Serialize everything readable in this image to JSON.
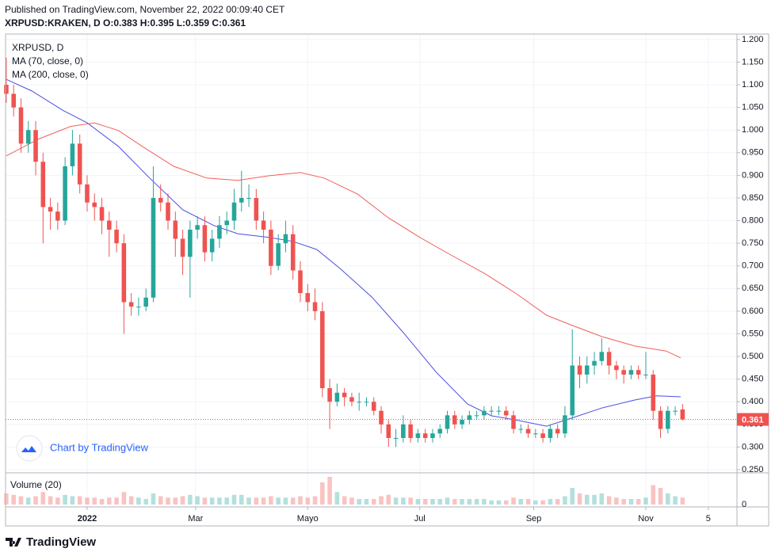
{
  "header": {
    "published": "Published on TradingView.com, November 22, 2022 00:09:40 CET",
    "symbol_line": "XRPUSD:KRAKEN, D  O:0.383 H:0.395 L:0.359 C:0.361"
  },
  "watermark": "Chart by TradingView",
  "footer": "TradingView",
  "chart_data": {
    "type": "candlestick",
    "title": "XRPUSD, D",
    "up_color": "#26a69a",
    "down_color": "#ef5350",
    "x": [
      -44,
      -40,
      -36,
      -32,
      -28,
      -24,
      -20,
      -16,
      -12,
      -8,
      -4,
      0,
      4,
      8,
      12,
      16,
      20,
      24,
      28,
      32,
      36,
      40,
      44,
      48,
      52,
      56,
      60,
      64,
      68,
      72,
      76,
      80,
      84,
      88,
      92,
      96,
      100,
      104,
      108,
      112,
      116,
      120,
      124,
      128,
      132,
      136,
      140,
      144,
      148,
      152,
      156,
      160,
      164,
      168,
      172,
      176,
      180,
      184,
      188,
      192,
      196,
      200,
      204,
      208,
      212,
      216,
      220,
      224,
      228,
      232,
      236,
      240,
      244,
      248,
      252,
      256,
      260,
      264,
      268,
      272,
      276,
      280,
      284,
      288,
      292,
      296,
      300,
      304,
      308,
      312,
      316,
      320,
      324
    ],
    "open": [
      1.1,
      1.08,
      1.05,
      0.97,
      1.0,
      0.93,
      0.83,
      0.82,
      0.8,
      0.92,
      0.97,
      0.88,
      0.84,
      0.83,
      0.8,
      0.78,
      0.75,
      0.62,
      0.61,
      0.61,
      0.63,
      0.85,
      0.84,
      0.8,
      0.76,
      0.72,
      0.78,
      0.79,
      0.73,
      0.76,
      0.79,
      0.8,
      0.84,
      0.85,
      0.85,
      0.8,
      0.78,
      0.7,
      0.75,
      0.77,
      0.69,
      0.64,
      0.62,
      0.6,
      0.43,
      0.4,
      0.42,
      0.41,
      0.4,
      0.4,
      0.4,
      0.38,
      0.35,
      0.32,
      0.32,
      0.35,
      0.32,
      0.33,
      0.32,
      0.33,
      0.34,
      0.37,
      0.35,
      0.36,
      0.37,
      0.37,
      0.38,
      0.38,
      0.38,
      0.37,
      0.34,
      0.34,
      0.33,
      0.33,
      0.32,
      0.34,
      0.33,
      0.37,
      0.48,
      0.46,
      0.48,
      0.49,
      0.51,
      0.48,
      0.47,
      0.46,
      0.47,
      0.46,
      0.46,
      0.38,
      0.34,
      0.38,
      0.383
    ],
    "high": [
      1.16,
      1.1,
      1.07,
      1.02,
      1.02,
      0.95,
      0.85,
      0.84,
      0.94,
      1.0,
      0.99,
      0.9,
      0.86,
      0.85,
      0.82,
      0.8,
      0.77,
      0.64,
      0.63,
      0.65,
      0.92,
      0.88,
      0.86,
      0.82,
      0.78,
      0.8,
      0.81,
      0.81,
      0.78,
      0.81,
      0.82,
      0.87,
      0.91,
      0.88,
      0.87,
      0.82,
      0.8,
      0.77,
      0.8,
      0.79,
      0.71,
      0.66,
      0.65,
      0.62,
      0.45,
      0.44,
      0.43,
      0.42,
      0.42,
      0.41,
      0.41,
      0.39,
      0.36,
      0.34,
      0.37,
      0.36,
      0.34,
      0.34,
      0.34,
      0.35,
      0.38,
      0.38,
      0.37,
      0.38,
      0.38,
      0.39,
      0.39,
      0.39,
      0.39,
      0.38,
      0.35,
      0.35,
      0.34,
      0.34,
      0.35,
      0.35,
      0.39,
      0.56,
      0.5,
      0.5,
      0.51,
      0.54,
      0.52,
      0.49,
      0.48,
      0.48,
      0.48,
      0.51,
      0.47,
      0.39,
      0.39,
      0.39,
      0.395
    ],
    "low": [
      1.06,
      1.03,
      0.95,
      0.95,
      0.9,
      0.75,
      0.78,
      0.78,
      0.79,
      0.9,
      0.86,
      0.82,
      0.8,
      0.77,
      0.72,
      0.73,
      0.55,
      0.59,
      0.59,
      0.6,
      0.62,
      0.82,
      0.78,
      0.72,
      0.68,
      0.63,
      0.76,
      0.71,
      0.71,
      0.74,
      0.77,
      0.78,
      0.82,
      0.83,
      0.78,
      0.75,
      0.68,
      0.69,
      0.73,
      0.67,
      0.62,
      0.6,
      0.58,
      0.41,
      0.34,
      0.39,
      0.39,
      0.39,
      0.38,
      0.39,
      0.37,
      0.33,
      0.3,
      0.3,
      0.31,
      0.31,
      0.31,
      0.31,
      0.31,
      0.32,
      0.33,
      0.34,
      0.34,
      0.35,
      0.36,
      0.36,
      0.37,
      0.37,
      0.36,
      0.33,
      0.33,
      0.32,
      0.32,
      0.31,
      0.31,
      0.32,
      0.32,
      0.36,
      0.43,
      0.44,
      0.46,
      0.48,
      0.46,
      0.45,
      0.44,
      0.45,
      0.45,
      0.45,
      0.36,
      0.32,
      0.33,
      0.37,
      0.359
    ],
    "close": [
      1.08,
      1.05,
      0.97,
      1.0,
      0.93,
      0.83,
      0.82,
      0.8,
      0.92,
      0.97,
      0.88,
      0.84,
      0.83,
      0.8,
      0.78,
      0.75,
      0.62,
      0.61,
      0.61,
      0.63,
      0.85,
      0.84,
      0.8,
      0.76,
      0.72,
      0.78,
      0.79,
      0.73,
      0.76,
      0.79,
      0.8,
      0.84,
      0.85,
      0.85,
      0.8,
      0.78,
      0.7,
      0.75,
      0.77,
      0.69,
      0.64,
      0.62,
      0.6,
      0.43,
      0.4,
      0.42,
      0.41,
      0.4,
      0.4,
      0.4,
      0.38,
      0.35,
      0.32,
      0.32,
      0.35,
      0.32,
      0.33,
      0.32,
      0.33,
      0.34,
      0.37,
      0.35,
      0.36,
      0.37,
      0.37,
      0.38,
      0.38,
      0.38,
      0.37,
      0.34,
      0.34,
      0.33,
      0.33,
      0.32,
      0.34,
      0.33,
      0.37,
      0.48,
      0.46,
      0.48,
      0.49,
      0.51,
      0.48,
      0.47,
      0.46,
      0.47,
      0.46,
      0.46,
      0.38,
      0.34,
      0.38,
      0.38,
      0.361
    ],
    "volume": [
      40,
      35,
      30,
      25,
      30,
      45,
      30,
      25,
      35,
      30,
      30,
      25,
      25,
      20,
      25,
      25,
      45,
      30,
      25,
      20,
      40,
      30,
      25,
      25,
      30,
      35,
      30,
      25,
      25,
      25,
      25,
      35,
      35,
      25,
      25,
      25,
      30,
      25,
      25,
      25,
      30,
      25,
      30,
      80,
      100,
      45,
      30,
      25,
      20,
      20,
      20,
      30,
      35,
      25,
      25,
      25,
      20,
      20,
      20,
      20,
      25,
      20,
      20,
      20,
      20,
      20,
      15,
      15,
      15,
      25,
      20,
      20,
      15,
      15,
      20,
      20,
      30,
      60,
      40,
      35,
      35,
      40,
      30,
      25,
      20,
      20,
      20,
      25,
      70,
      60,
      40,
      30,
      25
    ],
    "volume_title": "Volume (20)",
    "volume_ylim": [
      0,
      100
    ],
    "volume_yticks": [
      0
    ],
    "ma_series": [
      {
        "name": "MA (70, close, 0)",
        "color": "#4a4ee0",
        "x": [
          -44,
          -30,
          -13,
          0,
          17,
          34,
          52,
          69,
          82,
          99,
          112,
          125,
          138,
          155,
          172,
          190,
          207,
          220,
          233,
          250,
          263,
          280,
          298,
          310,
          323
        ],
        "values": [
          1.112,
          1.086,
          1.043,
          1.016,
          0.964,
          0.894,
          0.824,
          0.789,
          0.771,
          0.763,
          0.754,
          0.736,
          0.693,
          0.631,
          0.553,
          0.465,
          0.395,
          0.369,
          0.36,
          0.346,
          0.363,
          0.386,
          0.404,
          0.413,
          0.411
        ]
      },
      {
        "name": "MA (200, close, 0)",
        "color": "#f0605a",
        "x": [
          -44,
          -26,
          -9,
          4,
          17,
          30,
          47,
          65,
          82,
          99,
          116,
          129,
          147,
          164,
          181,
          198,
          216,
          233,
          250,
          263,
          280,
          298,
          315,
          323
        ],
        "values": [
          0.943,
          0.981,
          1.008,
          1.016,
          0.999,
          0.964,
          0.92,
          0.894,
          0.889,
          0.899,
          0.906,
          0.894,
          0.859,
          0.806,
          0.763,
          0.724,
          0.684,
          0.64,
          0.591,
          0.57,
          0.544,
          0.523,
          0.512,
          0.497
        ]
      }
    ],
    "xlim": [
      -44.4,
      353.6
    ],
    "xticks": [
      {
        "value": 0,
        "label": "2022"
      },
      {
        "value": 59,
        "label": "Mar"
      },
      {
        "value": 120,
        "label": "Mayo"
      },
      {
        "value": 181,
        "label": "Jul"
      },
      {
        "value": 243,
        "label": "Sep"
      },
      {
        "value": 304,
        "label": "Nov"
      },
      {
        "value": 338,
        "label": "5"
      }
    ],
    "ylim": [
      0.243,
      1.212
    ],
    "yticks": [
      {
        "value": 0.25,
        "label": "0.250"
      },
      {
        "value": 0.3,
        "label": "0.300"
      },
      {
        "value": 0.35,
        "label": "0.350"
      },
      {
        "value": 0.4,
        "label": "0.400"
      },
      {
        "value": 0.45,
        "label": "0.450"
      },
      {
        "value": 0.5,
        "label": "0.500"
      },
      {
        "value": 0.55,
        "label": "0.550"
      },
      {
        "value": 0.6,
        "label": "0.600"
      },
      {
        "value": 0.65,
        "label": "0.650"
      },
      {
        "value": 0.7,
        "label": "0.700"
      },
      {
        "value": 0.75,
        "label": "0.750"
      },
      {
        "value": 0.8,
        "label": "0.800"
      },
      {
        "value": 0.85,
        "label": "0.850"
      },
      {
        "value": 0.9,
        "label": "0.900"
      },
      {
        "value": 0.95,
        "label": "0.950"
      },
      {
        "value": 1.0,
        "label": "1.000"
      },
      {
        "value": 1.05,
        "label": "1.050"
      },
      {
        "value": 1.1,
        "label": "1.100"
      },
      {
        "value": 1.15,
        "label": "1.150"
      },
      {
        "value": 1.2,
        "label": "1.200"
      }
    ],
    "grid": true
  }
}
